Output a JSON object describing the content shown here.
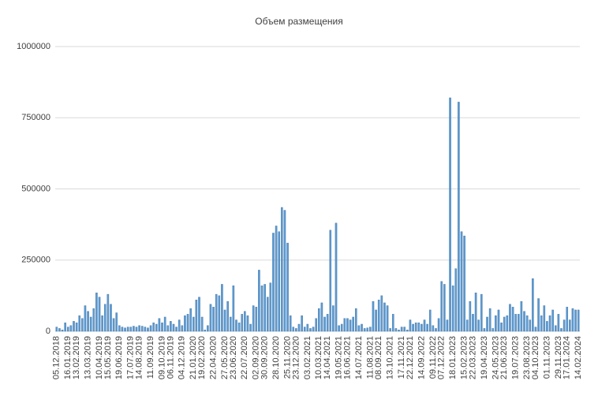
{
  "chart_data": {
    "type": "bar",
    "title": "Объем размещения",
    "categories": [
      "05.12.2018",
      null,
      null,
      null,
      "16.01.2019",
      null,
      null,
      "13.02.2019",
      null,
      null,
      null,
      "13.03.2019",
      null,
      null,
      null,
      "10.04.2019",
      null,
      null,
      "15.05.2019",
      null,
      null,
      null,
      "19.06.2019",
      null,
      null,
      null,
      "17.07.2019",
      null,
      null,
      "14.08.2019",
      null,
      null,
      null,
      "11.09.2019",
      null,
      null,
      null,
      "09.10.2019",
      null,
      null,
      "06.11.2019",
      null,
      null,
      null,
      "04.12.2019",
      null,
      null,
      null,
      "21.01.2020",
      null,
      null,
      "19.02.2020",
      null,
      null,
      null,
      "22.04.2020",
      null,
      null,
      null,
      "27.05.2020",
      null,
      null,
      "23.06.2020",
      null,
      null,
      null,
      "22.07.2020",
      null,
      null,
      null,
      "02.09.2020",
      null,
      null,
      "30.09.2020",
      null,
      null,
      null,
      "28.10.2020",
      null,
      null,
      null,
      "25.11.2020",
      null,
      null,
      "23.12.2020",
      null,
      null,
      null,
      "03.02.2021",
      null,
      null,
      null,
      "10.03.2021",
      null,
      null,
      "14.04.2021",
      null,
      null,
      null,
      "19.05.2021",
      null,
      null,
      "16.06.2021",
      null,
      null,
      null,
      "14.07.2021",
      null,
      null,
      null,
      "11.08.2021",
      null,
      null,
      "08.09.2021",
      null,
      null,
      null,
      "13.10.2021",
      null,
      null,
      null,
      "17.11.2021",
      null,
      null,
      "22.12.2021",
      null,
      null,
      null,
      "14.09.2022",
      null,
      null,
      null,
      "09.11.2022",
      null,
      null,
      "07.12.2022",
      null,
      null,
      null,
      "18.01.2023",
      null,
      null,
      null,
      "15.02.2023",
      null,
      null,
      "22.03.2023",
      null,
      null,
      null,
      "19.04.2023",
      null,
      null,
      null,
      "24.05.2023",
      null,
      null,
      "21.06.2023",
      null,
      null,
      null,
      "19.07.2023",
      null,
      null,
      null,
      "23.08.2023",
      null,
      null,
      "04.10.2023",
      null,
      null,
      null,
      "01.11.2023",
      null,
      null,
      null,
      "29.11.2023",
      null,
      null,
      "17.01.2024",
      null,
      null,
      null,
      "14.02.2024"
    ],
    "values": [
      15000,
      10000,
      5000,
      30000,
      15000,
      20000,
      35000,
      30000,
      55000,
      45000,
      90000,
      70000,
      50000,
      80000,
      135000,
      120000,
      55000,
      95000,
      130000,
      95000,
      45000,
      65000,
      20000,
      15000,
      12000,
      15000,
      15000,
      18000,
      15000,
      20000,
      18000,
      15000,
      12000,
      20000,
      30000,
      25000,
      45000,
      30000,
      50000,
      20000,
      35000,
      25000,
      15000,
      40000,
      20000,
      55000,
      60000,
      80000,
      50000,
      110000,
      120000,
      50000,
      5000,
      20000,
      95000,
      85000,
      130000,
      125000,
      165000,
      75000,
      105000,
      50000,
      160000,
      40000,
      30000,
      60000,
      70000,
      55000,
      25000,
      90000,
      85000,
      215000,
      160000,
      165000,
      120000,
      170000,
      345000,
      370000,
      350000,
      435000,
      425000,
      310000,
      55000,
      15000,
      10000,
      25000,
      55000,
      15000,
      25000,
      10000,
      15000,
      45000,
      80000,
      100000,
      50000,
      60000,
      355000,
      90000,
      380000,
      20000,
      25000,
      45000,
      45000,
      40000,
      50000,
      80000,
      20000,
      25000,
      10000,
      12000,
      15000,
      105000,
      75000,
      110000,
      125000,
      100000,
      90000,
      10000,
      60000,
      10000,
      5000,
      15000,
      15000,
      5000,
      40000,
      25000,
      30000,
      30000,
      25000,
      40000,
      25000,
      75000,
      20000,
      10000,
      45000,
      175000,
      165000,
      40000,
      820000,
      160000,
      220000,
      805000,
      350000,
      335000,
      40000,
      105000,
      60000,
      135000,
      40000,
      130000,
      10000,
      50000,
      80000,
      10000,
      55000,
      75000,
      30000,
      50000,
      55000,
      95000,
      85000,
      60000,
      60000,
      105000,
      70000,
      55000,
      40000,
      185000,
      15000,
      115000,
      55000,
      90000,
      35000,
      55000,
      75000,
      20000,
      60000,
      10000,
      40000,
      85000,
      40000,
      80000,
      75000,
      75000
    ],
    "color": "#5b9bd5",
    "ylim": [
      0,
      1000000
    ],
    "yticks": [
      0,
      250000,
      500000,
      750000,
      1000000
    ],
    "grid": true
  }
}
